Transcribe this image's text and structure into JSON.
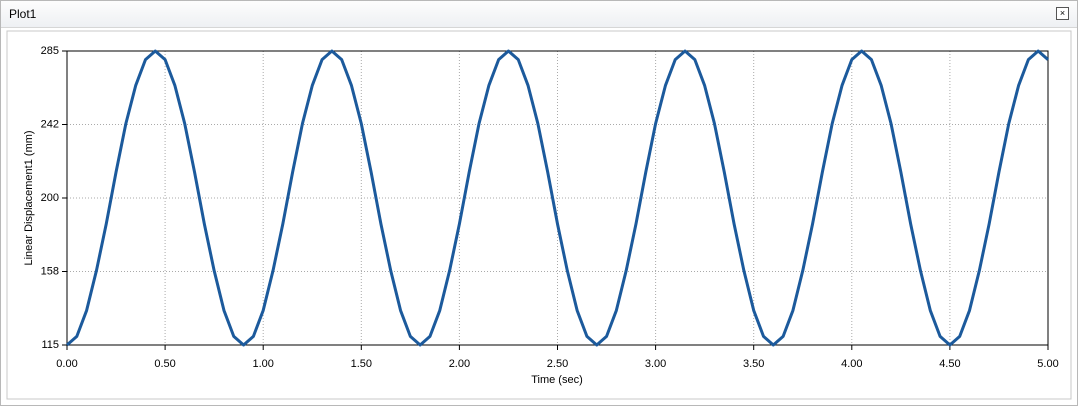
{
  "window": {
    "title": "Plot1"
  },
  "chart_data": {
    "type": "line",
    "x_label": "Time (sec)",
    "y_label": "Linear Displacement1 (mm)",
    "x": [
      0,
      0.05,
      0.1,
      0.15,
      0.2,
      0.25,
      0.3,
      0.35,
      0.4,
      0.45,
      0.5,
      0.55,
      0.6,
      0.65,
      0.7,
      0.75,
      0.8,
      0.85,
      0.9,
      0.95,
      1,
      1.05,
      1.1,
      1.15,
      1.2,
      1.25,
      1.3,
      1.35,
      1.4,
      1.45,
      1.5,
      1.55,
      1.6,
      1.65,
      1.7,
      1.75,
      1.8,
      1.85,
      1.9,
      1.95,
      2,
      2.05,
      2.1,
      2.15,
      2.2,
      2.25,
      2.3,
      2.35,
      2.4,
      2.45,
      2.5,
      2.55,
      2.6,
      2.65,
      2.7,
      2.75,
      2.8,
      2.85,
      2.9,
      2.95,
      3,
      3.05,
      3.1,
      3.15,
      3.2,
      3.25,
      3.3,
      3.35,
      3.4,
      3.45,
      3.5,
      3.55,
      3.6,
      3.65,
      3.7,
      3.75,
      3.8,
      3.85,
      3.9,
      3.95,
      4,
      4.05,
      4.1,
      4.15,
      4.2,
      4.25,
      4.3,
      4.35,
      4.4,
      4.45,
      4.5,
      4.55,
      4.6,
      4.65,
      4.7,
      4.75,
      4.8,
      4.85,
      4.9,
      4.95,
      5
    ],
    "series": [
      {
        "color": "#1c5a9c",
        "values": [
          115,
          120,
          135,
          158,
          185,
          215,
          243,
          265,
          280,
          285,
          280,
          265,
          243,
          215,
          185,
          158,
          135,
          120,
          115,
          120,
          135,
          158,
          185,
          215,
          243,
          265,
          280,
          285,
          280,
          265,
          243,
          215,
          185,
          158,
          135,
          120,
          115,
          120,
          135,
          158,
          185,
          215,
          243,
          265,
          280,
          285,
          280,
          265,
          243,
          215,
          185,
          158,
          135,
          120,
          115,
          120,
          135,
          158,
          185,
          215,
          243,
          265,
          280,
          285,
          280,
          265,
          243,
          215,
          185,
          158,
          135,
          120,
          115,
          120,
          135,
          158,
          185,
          215,
          243,
          265,
          280,
          285,
          280,
          265,
          243,
          215,
          185,
          158,
          135,
          120,
          115,
          120,
          135,
          158,
          185,
          215,
          243,
          265,
          280,
          285,
          280
        ]
      }
    ],
    "xlim": [
      0,
      5
    ],
    "ylim": [
      115,
      285
    ],
    "xticks": [
      {
        "value": 0,
        "label": "0.00"
      },
      {
        "value": 0.5,
        "label": "0.50"
      },
      {
        "value": 1,
        "label": "1.00"
      },
      {
        "value": 1.5,
        "label": "1.50"
      },
      {
        "value": 2,
        "label": "2.00"
      },
      {
        "value": 2.5,
        "label": "2.50"
      },
      {
        "value": 3,
        "label": "3.00"
      },
      {
        "value": 3.5,
        "label": "3.50"
      },
      {
        "value": 4,
        "label": "4.00"
      },
      {
        "value": 4.5,
        "label": "4.50"
      },
      {
        "value": 5,
        "label": "5.00"
      }
    ],
    "yticks": [
      115,
      {
        "value": 157.5,
        "label": "158"
      },
      200,
      {
        "value": 242.5,
        "label": "242"
      },
      285
    ],
    "grid": true
  }
}
